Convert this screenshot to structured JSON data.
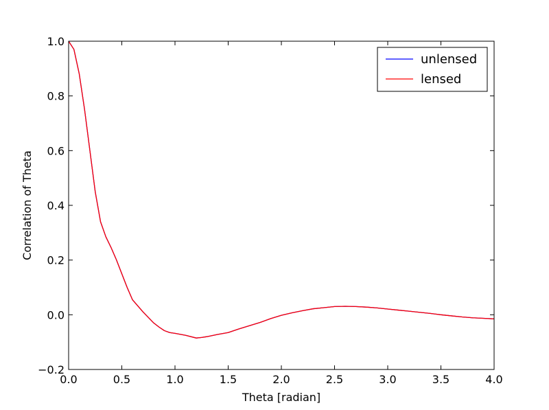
{
  "chart_data": {
    "type": "line",
    "xlabel": "Theta [radian]",
    "ylabel": "Correlation of Theta",
    "xlim": [
      0.0,
      4.0
    ],
    "ylim": [
      -0.2,
      1.0
    ],
    "xticks": [
      "0.0",
      "0.5",
      "1.0",
      "1.5",
      "2.0",
      "2.5",
      "3.0",
      "3.5",
      "4.0"
    ],
    "yticks": [
      "−0.2",
      "0.0",
      "0.2",
      "0.4",
      "0.6",
      "0.8",
      "1.0"
    ],
    "grid": false,
    "legend_position": "top-right",
    "x": [
      0.0,
      0.05,
      0.1,
      0.15,
      0.2,
      0.25,
      0.3,
      0.35,
      0.4,
      0.45,
      0.5,
      0.55,
      0.6,
      0.7,
      0.8,
      0.85,
      0.9,
      0.95,
      1.0,
      1.1,
      1.2,
      1.25,
      1.3,
      1.4,
      1.5,
      1.6,
      1.7,
      1.8,
      1.9,
      2.0,
      2.1,
      2.2,
      2.3,
      2.4,
      2.5,
      2.6,
      2.7,
      2.8,
      2.9,
      3.0,
      3.1,
      3.2,
      3.3,
      3.4,
      3.5,
      3.6,
      3.7,
      3.8,
      3.9,
      4.0
    ],
    "series": [
      {
        "name": "unlensed",
        "color": "#0000ff",
        "values": [
          1.0,
          0.97,
          0.88,
          0.75,
          0.6,
          0.45,
          0.34,
          0.285,
          0.245,
          0.2,
          0.15,
          0.1,
          0.055,
          0.01,
          -0.03,
          -0.045,
          -0.058,
          -0.065,
          -0.068,
          -0.075,
          -0.085,
          -0.083,
          -0.08,
          -0.072,
          -0.065,
          -0.052,
          -0.04,
          -0.028,
          -0.014,
          -0.002,
          0.007,
          0.015,
          0.022,
          0.026,
          0.03,
          0.031,
          0.03,
          0.028,
          0.025,
          0.021,
          0.017,
          0.013,
          0.009,
          0.005,
          0.0,
          -0.004,
          -0.008,
          -0.011,
          -0.013,
          -0.015
        ]
      },
      {
        "name": "lensed",
        "color": "#ff0000",
        "values": [
          1.0,
          0.97,
          0.88,
          0.75,
          0.6,
          0.45,
          0.34,
          0.285,
          0.245,
          0.2,
          0.15,
          0.1,
          0.055,
          0.01,
          -0.03,
          -0.045,
          -0.058,
          -0.065,
          -0.068,
          -0.075,
          -0.085,
          -0.083,
          -0.08,
          -0.072,
          -0.065,
          -0.052,
          -0.04,
          -0.028,
          -0.014,
          -0.002,
          0.007,
          0.015,
          0.022,
          0.026,
          0.03,
          0.031,
          0.03,
          0.028,
          0.025,
          0.021,
          0.017,
          0.013,
          0.009,
          0.005,
          0.0,
          -0.004,
          -0.008,
          -0.011,
          -0.013,
          -0.015
        ]
      }
    ]
  }
}
